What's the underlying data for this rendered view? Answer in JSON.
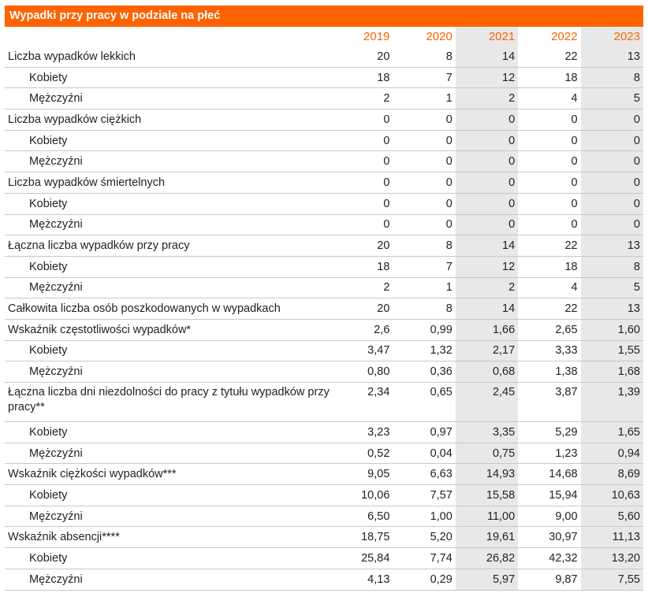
{
  "title": "Wypadki przy pracy w podziale na płeć",
  "years": [
    "2019",
    "2020",
    "2021",
    "2022",
    "2023"
  ],
  "rows": [
    {
      "label": "Liczba wypadków lekkich",
      "sub": false,
      "values": [
        "20",
        "8",
        "14",
        "22",
        "13"
      ]
    },
    {
      "label": "Kobiety",
      "sub": true,
      "values": [
        "18",
        "7",
        "12",
        "18",
        "8"
      ]
    },
    {
      "label": "Mężczyźni",
      "sub": true,
      "values": [
        "2",
        "1",
        "2",
        "4",
        "5"
      ]
    },
    {
      "label": "Liczba wypadków ciężkich",
      "sub": false,
      "values": [
        "0",
        "0",
        "0",
        "0",
        "0"
      ]
    },
    {
      "label": "Kobiety",
      "sub": true,
      "values": [
        "0",
        "0",
        "0",
        "0",
        "0"
      ]
    },
    {
      "label": "Mężczyźni",
      "sub": true,
      "values": [
        "0",
        "0",
        "0",
        "0",
        "0"
      ]
    },
    {
      "label": "Liczba wypadków śmiertelnych",
      "sub": false,
      "values": [
        "0",
        "0",
        "0",
        "0",
        "0"
      ]
    },
    {
      "label": "Kobiety",
      "sub": true,
      "values": [
        "0",
        "0",
        "0",
        "0",
        "0"
      ]
    },
    {
      "label": "Mężczyźni",
      "sub": true,
      "values": [
        "0",
        "0",
        "0",
        "0",
        "0"
      ]
    },
    {
      "label": "Łączna liczba wypadków przy pracy",
      "sub": false,
      "values": [
        "20",
        "8",
        "14",
        "22",
        "13"
      ]
    },
    {
      "label": "Kobiety",
      "sub": true,
      "values": [
        "18",
        "7",
        "12",
        "18",
        "8"
      ]
    },
    {
      "label": "Mężczyźni",
      "sub": true,
      "values": [
        "2",
        "1",
        "2",
        "4",
        "5"
      ]
    },
    {
      "label": "Całkowita liczba osób poszkodowanych w wypadkach",
      "sub": false,
      "values": [
        "20",
        "8",
        "14",
        "22",
        "13"
      ]
    },
    {
      "label": "Wskaźnik częstotliwości wypadków*",
      "sub": false,
      "values": [
        "2,6",
        "0,99",
        "1,66",
        "2,65",
        "1,60"
      ]
    },
    {
      "label": "Kobiety",
      "sub": true,
      "values": [
        "3,47",
        "1,32",
        "2,17",
        "3,33",
        "1,55"
      ]
    },
    {
      "label": "Mężczyźni",
      "sub": true,
      "values": [
        "0,80",
        "0,36",
        "0,68",
        "1,38",
        "1,68"
      ]
    },
    {
      "label": "Łączna liczba dni niezdolności do pracy z tytułu wypadków przy pracy**",
      "sub": false,
      "tall": true,
      "values": [
        "2,34",
        "0,65",
        "2,45",
        "3,87",
        "1,39"
      ]
    },
    {
      "label": "Kobiety",
      "sub": true,
      "values": [
        "3,23",
        "0,97",
        "3,35",
        "5,29",
        "1,65"
      ]
    },
    {
      "label": "Mężczyźni",
      "sub": true,
      "values": [
        "0,52",
        "0,04",
        "0,75",
        "1,23",
        "0,94"
      ]
    },
    {
      "label": "Wskaźnik ciężkości wypadków***",
      "sub": false,
      "values": [
        "9,05",
        "6,63",
        "14,93",
        "14,68",
        "8,69"
      ]
    },
    {
      "label": "Kobiety",
      "sub": true,
      "values": [
        "10,06",
        "7,57",
        "15,58",
        "15,94",
        "10,63"
      ]
    },
    {
      "label": "Mężczyźni",
      "sub": true,
      "values": [
        "6,50",
        "1,00",
        "11,00",
        "9,00",
        "5,60"
      ]
    },
    {
      "label": "Wskaźnik absencji****",
      "sub": false,
      "values": [
        "18,75",
        "5,20",
        "19,61",
        "30,97",
        "11,13"
      ]
    },
    {
      "label": "Kobiety",
      "sub": true,
      "values": [
        "25,84",
        "7,74",
        "26,82",
        "42,32",
        "13,20"
      ]
    },
    {
      "label": "Mężczyźni",
      "sub": true,
      "values": [
        "4,13",
        "0,29",
        "5,97",
        "9,87",
        "7,55"
      ]
    }
  ],
  "colors": {
    "accent": "#ff6200",
    "shade": "#e8e8e8",
    "rule": "#c8c8c8"
  }
}
